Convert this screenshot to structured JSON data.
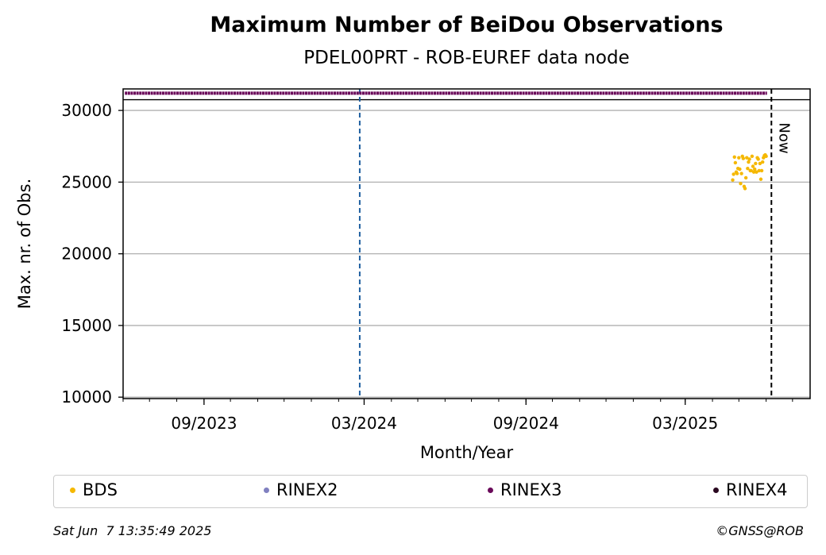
{
  "chart_data": {
    "type": "scatter",
    "title": "Maximum Number of BeiDou Observations",
    "subtitle": "PDEL00PRT - ROB-EUREF data node",
    "xlabel": "Month/Year",
    "ylabel": "Max. nr. of Obs.",
    "x_ticks": [
      "09/2023",
      "03/2024",
      "09/2024",
      "03/2025"
    ],
    "y_ticks": [
      10000,
      15000,
      20000,
      25000,
      30000
    ],
    "ylim": [
      9900,
      31500
    ],
    "xlim": [
      "2023-06-01",
      "2025-07-21"
    ],
    "grid": "y",
    "legend_position": "bottom",
    "now_label": "Now",
    "now_date": "2025-06-07",
    "marker_date": "2024-02-25",
    "colors": {
      "BDS": "#f5b800",
      "RINEX2": "#8080c0",
      "RINEX3": "#6a0a5a",
      "RINEX4": "#2a0820",
      "marker_line": "#1f5fa0",
      "now_line": "#000000",
      "grid": "#b0b0b0"
    },
    "series": [
      {
        "name": "BDS",
        "x": [
          "2025-04-24",
          "2025-04-25",
          "2025-04-26",
          "2025-04-27",
          "2025-04-28",
          "2025-04-29",
          "2025-04-30",
          "2025-05-01",
          "2025-05-02",
          "2025-05-03",
          "2025-05-04",
          "2025-05-05",
          "2025-05-06",
          "2025-05-07",
          "2025-05-08",
          "2025-05-09",
          "2025-05-10",
          "2025-05-11",
          "2025-05-12",
          "2025-05-13",
          "2025-05-14",
          "2025-05-15",
          "2025-05-16",
          "2025-05-17",
          "2025-05-18",
          "2025-05-19",
          "2025-05-20",
          "2025-05-21",
          "2025-05-22",
          "2025-05-23",
          "2025-05-24",
          "2025-05-25",
          "2025-05-26",
          "2025-05-27",
          "2025-05-28",
          "2025-05-29",
          "2025-05-30",
          "2025-05-31",
          "2025-06-01"
        ],
        "values": [
          25150,
          25550,
          26750,
          26350,
          25700,
          25600,
          25950,
          26700,
          25900,
          24900,
          25600,
          26800,
          26650,
          24700,
          24550,
          25300,
          26700,
          25950,
          26400,
          26600,
          25800,
          25800,
          26800,
          26100,
          25700,
          25900,
          26300,
          25700,
          26700,
          26600,
          25800,
          26300,
          25200,
          25800,
          26400,
          26700,
          26850,
          26900,
          26800
        ]
      },
      {
        "name": "RINEX3",
        "x_start": "2023-06-03",
        "x_end": "2025-06-02",
        "value": 31200
      }
    ]
  },
  "legend": [
    {
      "label": "BDS",
      "color": "#f5b800"
    },
    {
      "label": "RINEX2",
      "color": "#8080c0"
    },
    {
      "label": "RINEX3",
      "color": "#6a0a5a"
    },
    {
      "label": "RINEX4",
      "color": "#2a0820"
    }
  ],
  "footer": {
    "timestamp": "Sat Jun  7 13:35:49 2025",
    "copyright": "©GNSS@ROB"
  }
}
